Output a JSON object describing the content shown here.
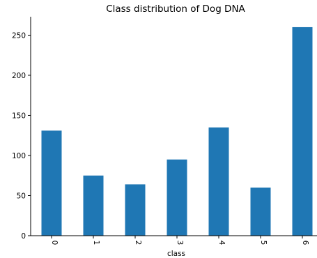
{
  "chart_data": {
    "type": "bar",
    "title": "Class distribution of Dog DNA",
    "xlabel": "class",
    "ylabel": "",
    "categories": [
      "0",
      "1",
      "2",
      "3",
      "4",
      "5",
      "6"
    ],
    "values": [
      131,
      75,
      64,
      95,
      135,
      60,
      260
    ],
    "ylim": [
      0,
      273
    ],
    "yticks": [
      0,
      50,
      100,
      150,
      200,
      250
    ],
    "grid": false,
    "legend": "none",
    "bar_color": "#1f77b4"
  }
}
